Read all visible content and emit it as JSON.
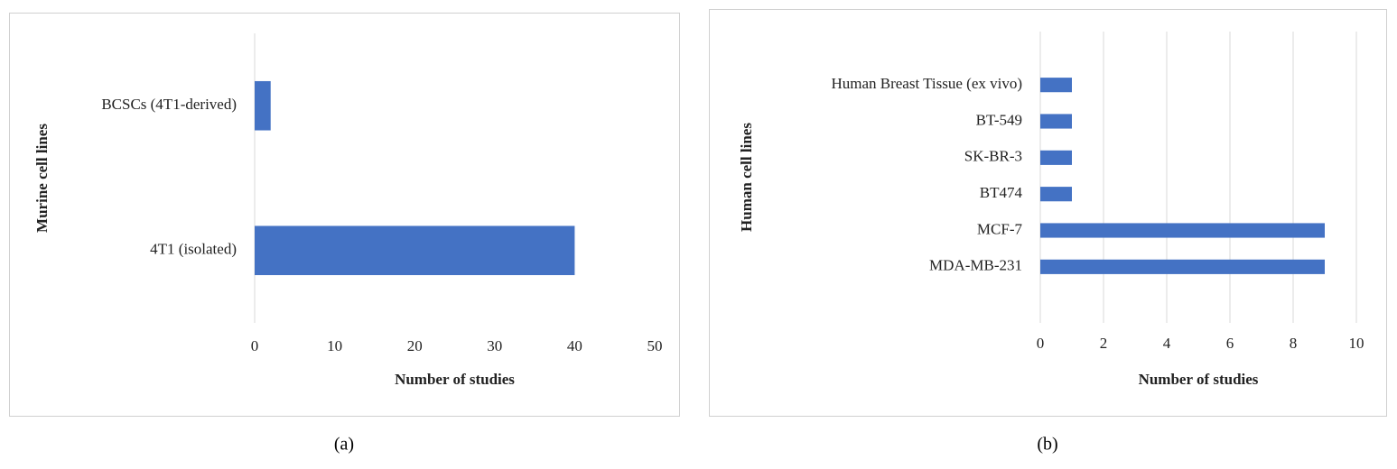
{
  "chart_data": [
    {
      "type": "bar",
      "orientation": "horizontal",
      "panel_label": "(a)",
      "y_label": "Murine cell lines",
      "x_label": "Number of studies",
      "categories": [
        "4T1 (isolated)",
        "BCSCs (4T1-derived)"
      ],
      "values": [
        40,
        2
      ],
      "color": "#4472c4",
      "xlim": [
        0,
        50
      ],
      "xticks": [
        0,
        10,
        20,
        30,
        40,
        50
      ],
      "grid": false
    },
    {
      "type": "bar",
      "orientation": "horizontal",
      "panel_label": "(b)",
      "y_label": "Human cell lines",
      "x_label": "Number of studies",
      "categories": [
        "MDA-MB-231",
        "MCF-7",
        "BT474",
        "SK-BR-3",
        "BT-549",
        "Human Breast Tissue (ex vivo)"
      ],
      "values": [
        9,
        9,
        1,
        1,
        1,
        1
      ],
      "color": "#4472c4",
      "xlim": [
        0,
        10
      ],
      "xticks": [
        0,
        2,
        4,
        6,
        8,
        10
      ],
      "grid": true
    }
  ]
}
